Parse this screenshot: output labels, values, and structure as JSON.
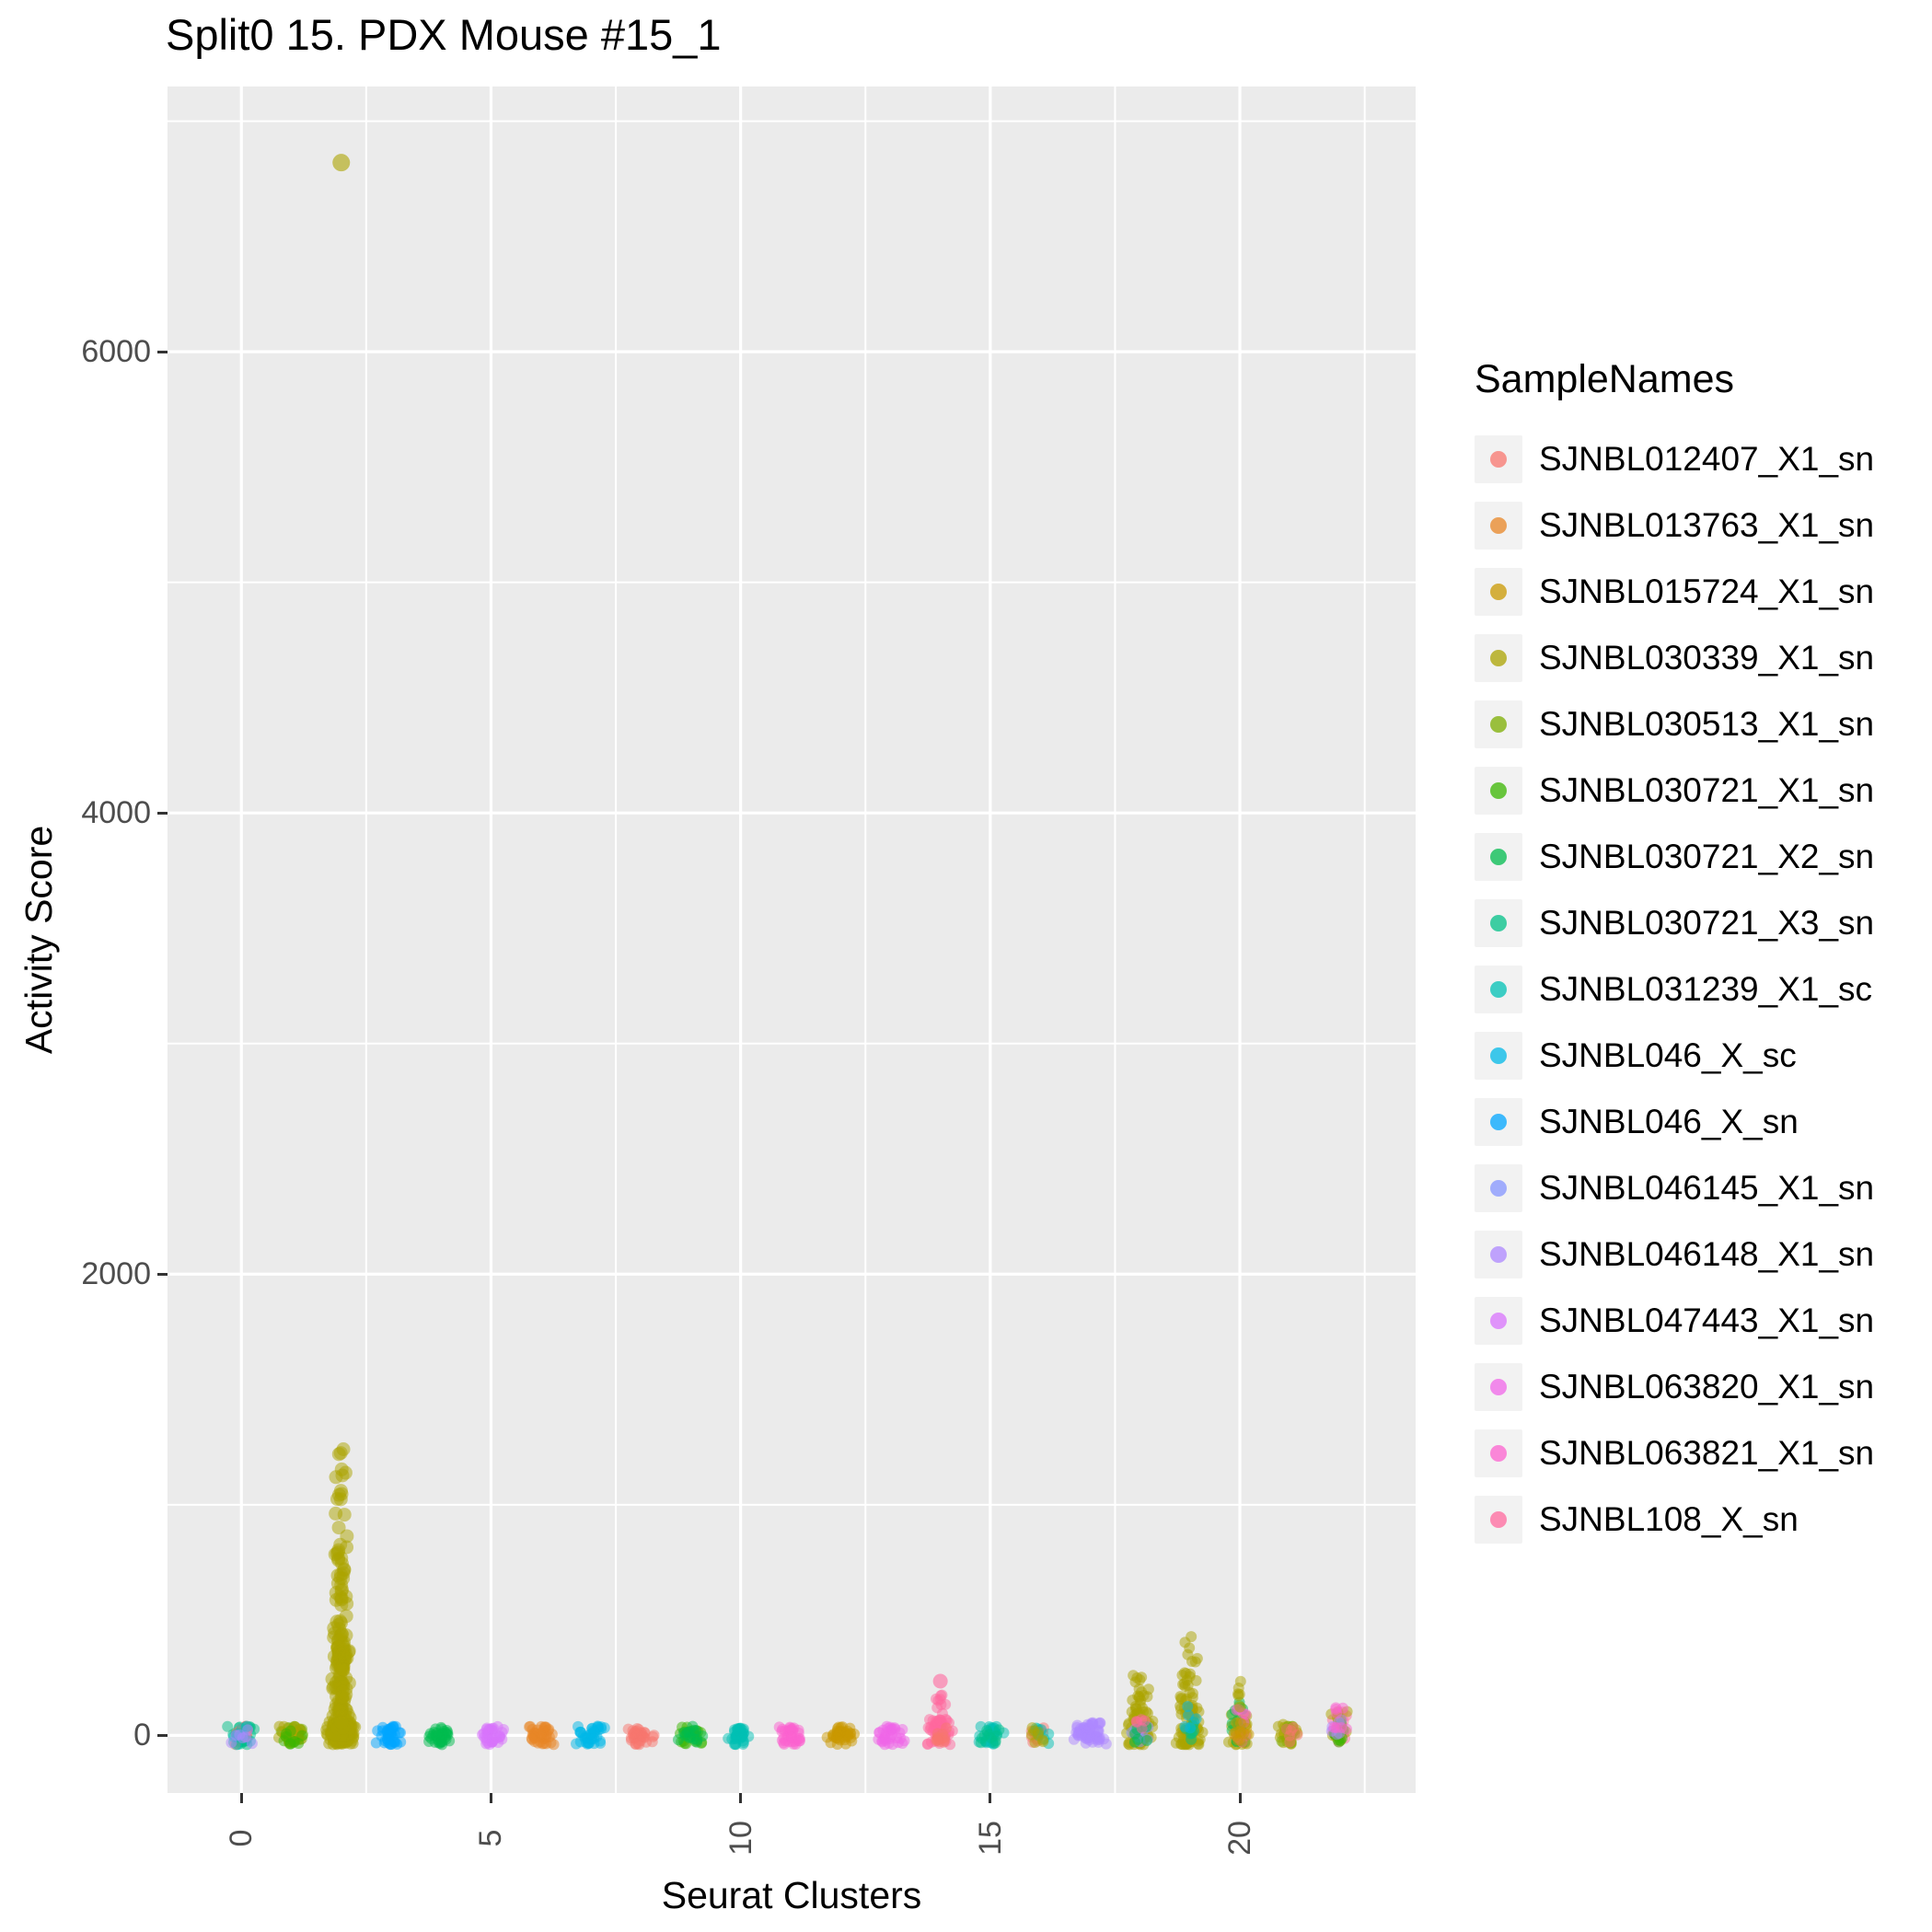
{
  "legend": {
    "title": "SampleNames",
    "items": [
      {
        "label": "SJNBL012407_X1_sn",
        "color": "#F8766D"
      },
      {
        "label": "SJNBL013763_X1_sn",
        "color": "#E88526"
      },
      {
        "label": "SJNBL015724_X1_sn",
        "color": "#C99800"
      },
      {
        "label": "SJNBL030339_X1_sn",
        "color": "#ABA300"
      },
      {
        "label": "SJNBL030513_X1_sn",
        "color": "#7CAE00"
      },
      {
        "label": "SJNBL030721_X1_sn",
        "color": "#39B600"
      },
      {
        "label": "SJNBL030721_X2_sn",
        "color": "#00BB4E"
      },
      {
        "label": "SJNBL030721_X3_sn",
        "color": "#00C087"
      },
      {
        "label": "SJNBL031239_X1_sc",
        "color": "#00C0B4"
      },
      {
        "label": "SJNBL046_X_sc",
        "color": "#00B8E7"
      },
      {
        "label": "SJNBL046_X_sn",
        "color": "#00A5FF"
      },
      {
        "label": "SJNBL046145_X1_sn",
        "color": "#8494FF"
      },
      {
        "label": "SJNBL046148_X1_sn",
        "color": "#AE87FF"
      },
      {
        "label": "SJNBL047443_X1_sn",
        "color": "#D873FC"
      },
      {
        "label": "SJNBL063820_X1_sn",
        "color": "#F066E8"
      },
      {
        "label": "SJNBL063821_X1_sn",
        "color": "#FC61CF"
      },
      {
        "label": "SJNBL108_X_sn",
        "color": "#FF689E"
      }
    ]
  },
  "chart_data": {
    "type": "scatter",
    "title": "Split0 15. PDX Mouse #15_1",
    "xlabel": "Seurat Clusters",
    "ylabel": "Activity Score",
    "x_ticks": [
      0,
      5,
      10,
      15,
      20
    ],
    "y_ticks": [
      0,
      2000,
      4000,
      6000
    ],
    "x_minor": [
      2.5,
      7.5,
      12.5,
      17.5,
      22.5
    ],
    "y_minor": [
      1000,
      3000,
      5000,
      7000
    ],
    "xlim": [
      -1.48,
      23.52
    ],
    "ylim": [
      -250,
      7150
    ],
    "panel_bg": "#EBEBEB",
    "grid_color": "#FFFFFF",
    "point_alpha": 0.5,
    "point_radius": 6,
    "groups_note": "Each group: [cluster_x, sample, n_points, y_min, y_max, jitter_width, skew_toward_min, radius(optional)]. Jittered points near Activity Score 0 for clusters 0-22; cluster 2 has a tall olive column up to ~1270; clusters 14,18,19,20,22 have small spreads up to ~150-430.",
    "groups": [
      [
        0,
        "SJNBL030721_X3_sn",
        26,
        -40,
        40,
        0.6,
        1
      ],
      [
        0,
        "SJNBL012407_X1_sn",
        10,
        -40,
        40,
        0.55,
        1
      ],
      [
        0,
        "SJNBL031239_X1_sc",
        10,
        -40,
        40,
        0.55,
        1
      ],
      [
        0,
        "SJNBL046148_X1_sn",
        7,
        -40,
        40,
        0.5,
        1
      ],
      [
        1,
        "SJNBL030513_X1_sn",
        26,
        -40,
        40,
        0.6,
        1
      ],
      [
        1,
        "SJNBL030339_X1_sn",
        18,
        -40,
        40,
        0.6,
        1
      ],
      [
        1,
        "SJNBL030721_X1_sn",
        10,
        -40,
        40,
        0.5,
        1
      ],
      [
        2,
        "SJNBL030339_X1_sn",
        220,
        -40,
        60,
        0.62,
        1
      ],
      [
        2,
        "SJNBL030339_X1_sn",
        160,
        0,
        430,
        0.42,
        2.2,
        7.5
      ],
      [
        2,
        "SJNBL030339_X1_sn",
        55,
        280,
        790,
        0.34,
        1.4,
        7.5
      ],
      [
        2,
        "SJNBL030339_X1_sn",
        18,
        690,
        1130,
        0.28,
        1,
        7.5
      ],
      [
        2,
        "SJNBL030339_X1_sn",
        6,
        1040,
        1270,
        0.2,
        1,
        7.5
      ],
      [
        3,
        "SJNBL046_X_sn",
        38,
        -40,
        40,
        0.62,
        1
      ],
      [
        4,
        "SJNBL030721_X2_sn",
        34,
        -40,
        40,
        0.6,
        1
      ],
      [
        5,
        "SJNBL047443_X1_sn",
        34,
        -40,
        40,
        0.6,
        1
      ],
      [
        6,
        "SJNBL013763_X1_sn",
        38,
        -40,
        40,
        0.62,
        1
      ],
      [
        7,
        "SJNBL046_X_sc",
        38,
        -40,
        40,
        0.62,
        1
      ],
      [
        8,
        "SJNBL012407_X1_sn",
        34,
        -40,
        40,
        0.6,
        1
      ],
      [
        9,
        "SJNBL030721_X1_sn",
        24,
        -40,
        40,
        0.6,
        1
      ],
      [
        9,
        "SJNBL030721_X2_sn",
        14,
        -40,
        40,
        0.55,
        1
      ],
      [
        10,
        "SJNBL031239_X1_sc",
        34,
        -40,
        40,
        0.6,
        1
      ],
      [
        11,
        "SJNBL063821_X1_sn",
        34,
        -40,
        40,
        0.6,
        1
      ],
      [
        12,
        "SJNBL015724_X1_sn",
        38,
        -40,
        40,
        0.62,
        1
      ],
      [
        13,
        "SJNBL063820_X1_sn",
        32,
        -40,
        40,
        0.6,
        1
      ],
      [
        14,
        "SJNBL108_X_sn",
        46,
        -40,
        70,
        0.55,
        1
      ],
      [
        14,
        "SJNBL108_X_sn",
        14,
        60,
        190,
        0.4,
        1.4
      ],
      [
        14,
        "SJNBL012407_X1_sn",
        12,
        -30,
        40,
        0.45,
        1
      ],
      [
        15,
        "SJNBL031239_X1_sc",
        28,
        -40,
        40,
        0.6,
        1
      ],
      [
        15,
        "SJNBL030721_X3_sn",
        10,
        -40,
        40,
        0.5,
        1
      ],
      [
        16,
        "SJNBL012407_X1_sn",
        9,
        -35,
        35,
        0.5,
        1
      ],
      [
        16,
        "SJNBL031239_X1_sc",
        9,
        -35,
        35,
        0.5,
        1
      ],
      [
        16,
        "SJNBL030339_X1_sn",
        8,
        -35,
        35,
        0.5,
        1
      ],
      [
        17,
        "SJNBL046148_X1_sn",
        55,
        -45,
        55,
        0.78,
        1
      ],
      [
        18,
        "SJNBL030339_X1_sn",
        55,
        -40,
        110,
        0.62,
        1.6
      ],
      [
        18,
        "SJNBL030339_X1_sn",
        22,
        90,
        270,
        0.46,
        1.4
      ],
      [
        18,
        "SJNBL046145_X1_sn",
        9,
        -30,
        40,
        0.4,
        1
      ],
      [
        18,
        "SJNBL030721_X2_sn",
        7,
        -30,
        50,
        0.4,
        1
      ],
      [
        18,
        "SJNBL108_X_sn",
        5,
        30,
        130,
        0.3,
        1
      ],
      [
        19,
        "SJNBL030339_X1_sn",
        60,
        -40,
        130,
        0.62,
        1.7
      ],
      [
        19,
        "SJNBL030339_X1_sn",
        26,
        110,
        310,
        0.46,
        1.4
      ],
      [
        19,
        "SJNBL030339_X1_sn",
        7,
        300,
        430,
        0.36,
        1
      ],
      [
        19,
        "SJNBL030721_X3_sn",
        7,
        -30,
        60,
        0.4,
        1
      ],
      [
        19,
        "SJNBL046_X_sc",
        5,
        30,
        150,
        0.3,
        1
      ],
      [
        20,
        "SJNBL030339_X1_sn",
        26,
        -40,
        130,
        0.5,
        1.6
      ],
      [
        20,
        "SJNBL030721_X2_sn",
        13,
        -30,
        150,
        0.45,
        1.3
      ],
      [
        20,
        "SJNBL063821_X1_sn",
        11,
        -30,
        130,
        0.4,
        1.2
      ],
      [
        20,
        "SJNBL015724_X1_sn",
        13,
        -35,
        60,
        0.45,
        1
      ],
      [
        20,
        "SJNBL030339_X1_sn",
        6,
        120,
        240,
        0.35,
        1
      ],
      [
        21,
        "SJNBL030339_X1_sn",
        22,
        -40,
        50,
        0.55,
        1
      ],
      [
        21,
        "SJNBL030513_X1_sn",
        9,
        -35,
        40,
        0.45,
        1
      ],
      [
        21,
        "SJNBL012407_X1_sn",
        6,
        -30,
        35,
        0.4,
        1
      ],
      [
        22,
        "SJNBL108_X_sn",
        14,
        -30,
        120,
        0.42,
        1.3
      ],
      [
        22,
        "SJNBL030339_X1_sn",
        14,
        -35,
        110,
        0.5,
        1.4
      ],
      [
        22,
        "SJNBL030721_X1_sn",
        8,
        -30,
        60,
        0.4,
        1
      ],
      [
        22,
        "SJNBL046148_X1_sn",
        6,
        -30,
        70,
        0.38,
        1
      ],
      [
        22,
        "SJNBL063821_X1_sn",
        8,
        0,
        150,
        0.38,
        1.2
      ]
    ],
    "outliers": [
      {
        "cluster": 2,
        "sample": "SJNBL030339_X1_sn",
        "y": 6820,
        "r": 9.5
      },
      {
        "cluster": 14,
        "sample": "SJNBL108_X_sn",
        "y": 235,
        "r": 8
      }
    ]
  }
}
